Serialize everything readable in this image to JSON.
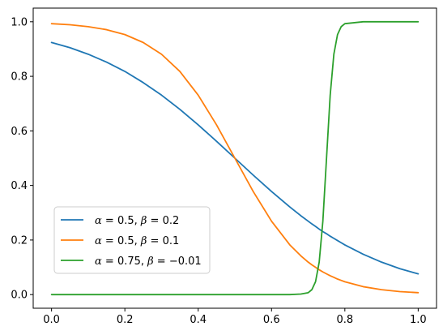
{
  "chart_data": {
    "type": "line",
    "xlim": [
      -0.05,
      1.05
    ],
    "ylim": [
      -0.05,
      1.05
    ],
    "xticks": [
      {
        "value": 0.0,
        "label": "0.0"
      },
      {
        "value": 0.2,
        "label": "0.2"
      },
      {
        "value": 0.4,
        "label": "0.4"
      },
      {
        "value": 0.6,
        "label": "0.6"
      },
      {
        "value": 0.8,
        "label": "0.8"
      },
      {
        "value": 1.0,
        "label": "1.0"
      }
    ],
    "yticks": [
      {
        "value": 0.0,
        "label": "0.0"
      },
      {
        "value": 0.2,
        "label": "0.2"
      },
      {
        "value": 0.4,
        "label": "0.4"
      },
      {
        "value": 0.6,
        "label": "0.6"
      },
      {
        "value": 0.8,
        "label": "0.8"
      },
      {
        "value": 1.0,
        "label": "1.0"
      }
    ],
    "grid": false,
    "legend_position": "lower-left",
    "x": [
      0.0,
      0.05,
      0.1,
      0.15,
      0.2,
      0.25,
      0.3,
      0.35,
      0.4,
      0.45,
      0.5,
      0.55,
      0.6,
      0.65,
      0.68,
      0.7,
      0.71,
      0.72,
      0.73,
      0.74,
      0.75,
      0.76,
      0.77,
      0.78,
      0.79,
      0.8,
      0.85,
      0.9,
      0.95,
      1.0
    ],
    "series": [
      {
        "name": "α = 0.5, β = 0.2",
        "legend": {
          "p1": "α",
          "p2": " = 0.5, ",
          "p3": "β",
          "p4": " = 0.2"
        },
        "color": "#1f77b4",
        "values": [
          0.924,
          0.905,
          0.881,
          0.852,
          0.818,
          0.777,
          0.731,
          0.679,
          0.622,
          0.562,
          0.5,
          0.438,
          0.378,
          0.321,
          0.289,
          0.269,
          0.259,
          0.25,
          0.24,
          0.231,
          0.223,
          0.214,
          0.206,
          0.198,
          0.19,
          0.182,
          0.148,
          0.119,
          0.095,
          0.076
        ]
      },
      {
        "name": "α = 0.5, β = 0.1",
        "legend": {
          "p1": "α",
          "p2": " = 0.5, ",
          "p3": "β",
          "p4": " = 0.1"
        },
        "color": "#ff7f0e",
        "values": [
          0.993,
          0.989,
          0.982,
          0.971,
          0.953,
          0.924,
          0.881,
          0.818,
          0.731,
          0.622,
          0.5,
          0.378,
          0.269,
          0.182,
          0.142,
          0.119,
          0.109,
          0.1,
          0.091,
          0.083,
          0.076,
          0.069,
          0.063,
          0.057,
          0.052,
          0.047,
          0.029,
          0.018,
          0.011,
          0.007
        ]
      },
      {
        "name": "α = 0.75, β = −0.01",
        "legend": {
          "p1": "α",
          "p2": " = 0.75, ",
          "p3": "β",
          "p4": " = −0.01"
        },
        "color": "#2ca02c",
        "values": [
          0.0,
          0.0,
          0.0,
          0.0,
          0.0,
          0.0,
          0.0,
          0.0,
          0.0,
          0.0,
          0.0,
          0.0,
          0.0,
          0.0,
          0.002,
          0.007,
          0.018,
          0.047,
          0.119,
          0.269,
          0.5,
          0.731,
          0.881,
          0.953,
          0.982,
          0.993,
          1.0,
          1.0,
          1.0,
          1.0
        ]
      }
    ]
  }
}
